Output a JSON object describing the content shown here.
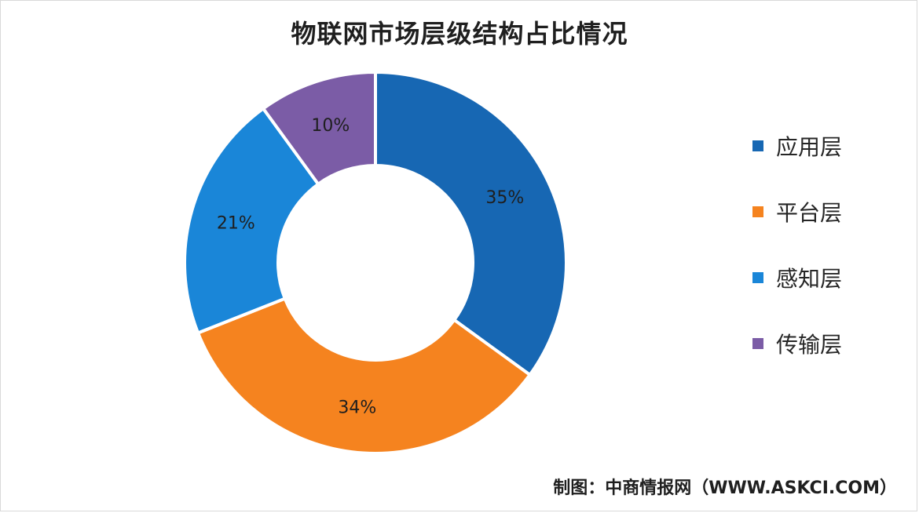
{
  "chart_data": {
    "type": "pie",
    "variant": "donut",
    "title": "物联网市场层级结构占比情况",
    "categories": [
      "应用层",
      "平台层",
      "感知层",
      "传输层"
    ],
    "values": [
      35,
      34,
      21,
      10
    ],
    "value_labels": [
      "35%",
      "34%",
      "21%",
      "10%"
    ],
    "unit": "%",
    "colors": [
      "#1767b3",
      "#f5831f",
      "#1a86d8",
      "#7b5ca6"
    ],
    "legend_position": "right"
  },
  "source": "制图：中商情报网（WWW.ASKCI.COM）"
}
